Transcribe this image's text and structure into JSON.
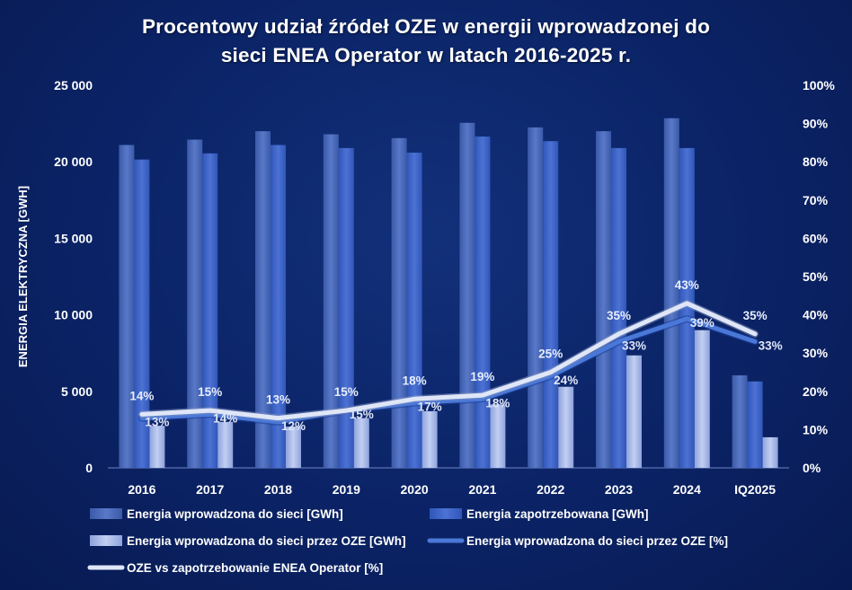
{
  "title_line1": "Procentowy udział źródeł OZE w energii wprowadzonej do",
  "title_line2": "sieci ENEA Operator w latach 2016-2025 r.",
  "chart_data": {
    "type": "bar",
    "title": "Procentowy udział źródeł OZE w energii wprowadzonej do sieci ENEA Operator w latach 2016-2025 r.",
    "categories": [
      "2016",
      "2017",
      "2018",
      "2019",
      "2020",
      "2021",
      "2022",
      "2023",
      "2024",
      "IQ2025"
    ],
    "ylabel": "ENERGIA ELEKTRYCZNA [GWH]",
    "ylim": [
      0,
      25000
    ],
    "y_ticks": [
      "0",
      "5 000",
      "10 000",
      "15 000",
      "20 000",
      "25 000"
    ],
    "y2lim": [
      0,
      100
    ],
    "y2_ticks": [
      "0%",
      "10%",
      "20%",
      "30%",
      "40%",
      "50%",
      "60%",
      "70%",
      "80%",
      "90%",
      "100%"
    ],
    "grid": false,
    "legend_position": "bottom",
    "series": [
      {
        "name": "Energia wprowadzona do sieci [GWh]",
        "kind": "bar",
        "axis": "left",
        "color": "#4a68b8",
        "values": [
          21100,
          21450,
          22000,
          21800,
          21550,
          22550,
          22250,
          22000,
          22850,
          6050
        ]
      },
      {
        "name": "Energia zapotrzebowana [GWh]",
        "kind": "bar",
        "axis": "left",
        "color": "#3f63c4",
        "values": [
          20150,
          20550,
          21100,
          20900,
          20600,
          21650,
          21350,
          20900,
          20900,
          5650
        ]
      },
      {
        "name": "Energia wprowadzona do sieci przez OZE [GWh]",
        "kind": "bar",
        "axis": "left",
        "color": "#a9b9e8",
        "values": [
          2750,
          3000,
          2700,
          3250,
          3700,
          4150,
          5300,
          7350,
          9000,
          2000
        ]
      },
      {
        "name": "Energia wprowadzona do sieci przez OZE [%]",
        "kind": "line",
        "axis": "right",
        "color": "#4a78d8",
        "values": [
          13,
          14,
          12,
          15,
          17,
          18,
          24,
          33,
          39,
          33
        ],
        "labels": [
          "13%",
          "14%",
          "12%",
          "15%",
          "17%",
          "18%",
          "24%",
          "33%",
          "39%",
          "33%"
        ]
      },
      {
        "name": "OZE vs zapotrzebowanie ENEA Operator [%]",
        "kind": "line",
        "axis": "right",
        "color": "#dfe6f7",
        "values": [
          14,
          15,
          13,
          15,
          18,
          19,
          25,
          35,
          43,
          35
        ],
        "labels": [
          "14%",
          "15%",
          "13%",
          "15%",
          "18%",
          "19%",
          "25%",
          "35%",
          "43%",
          "35%"
        ]
      }
    ]
  }
}
